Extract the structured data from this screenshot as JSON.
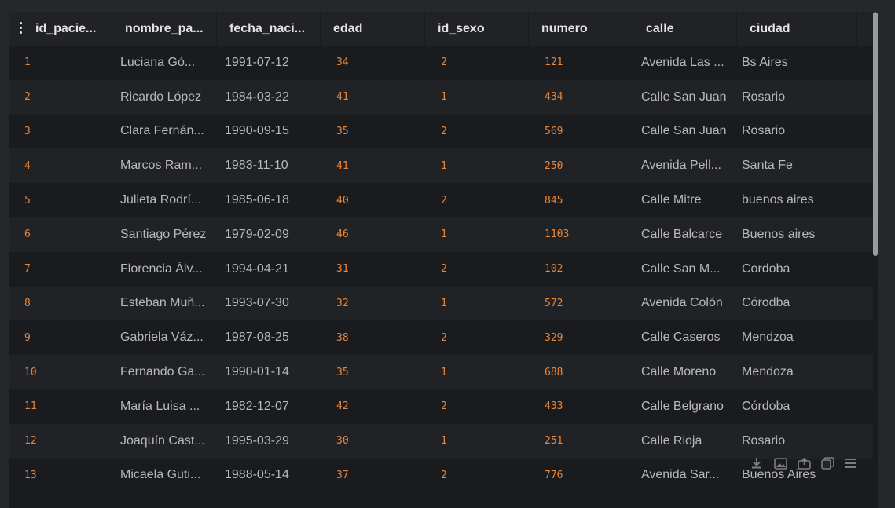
{
  "table": {
    "columns": [
      {
        "key": "id_paciente",
        "label": "id_pacie..."
      },
      {
        "key": "nombre_paciente",
        "label": "nombre_pa..."
      },
      {
        "key": "fecha_nacimiento",
        "label": "fecha_naci..."
      },
      {
        "key": "edad",
        "label": "edad"
      },
      {
        "key": "id_sexo",
        "label": "id_sexo"
      },
      {
        "key": "numero",
        "label": "numero"
      },
      {
        "key": "calle",
        "label": "calle"
      },
      {
        "key": "ciudad",
        "label": "ciudad"
      }
    ],
    "rows": [
      [
        "1",
        "Luciana Gó...",
        "1991-07-12",
        "34",
        "2",
        "121",
        "Avenida Las ...",
        "Bs Aires"
      ],
      [
        "2",
        "Ricardo López",
        "1984-03-22",
        "41",
        "1",
        "434",
        "Calle San Juan",
        "Rosario"
      ],
      [
        "3",
        "Clara Fernán...",
        "1990-09-15",
        "35",
        "2",
        "569",
        "Calle San Juan",
        "Rosario"
      ],
      [
        "4",
        "Marcos Ram...",
        "1983-11-10",
        "41",
        "1",
        "250",
        "Avenida Pell...",
        "Santa Fe"
      ],
      [
        "5",
        "Julieta Rodrí...",
        "1985-06-18",
        "40",
        "2",
        "845",
        "Calle Mitre",
        "buenos aires"
      ],
      [
        "6",
        "Santiago Pérez",
        "1979-02-09",
        "46",
        "1",
        "1103",
        "Calle Balcarce",
        "Buenos aires"
      ],
      [
        "7",
        "Florencia Álv...",
        "1994-04-21",
        "31",
        "2",
        "102",
        "Calle San M...",
        "Cordoba"
      ],
      [
        "8",
        "Esteban Muñ...",
        "1993-07-30",
        "32",
        "1",
        "572",
        "Avenida Colón",
        "Córodba"
      ],
      [
        "9",
        "Gabriela Váz...",
        "1987-08-25",
        "38",
        "2",
        "329",
        "Calle Caseros",
        "Mendzoa"
      ],
      [
        "10",
        "Fernando Ga...",
        "1990-01-14",
        "35",
        "1",
        "688",
        "Calle Moreno",
        "Mendoza"
      ],
      [
        "11",
        "María Luisa ...",
        "1982-12-07",
        "42",
        "2",
        "433",
        "Calle Belgrano",
        "Córdoba"
      ],
      [
        "12",
        "Joaquín Cast...",
        "1995-03-29",
        "30",
        "1",
        "251",
        "Calle Rioja",
        "Rosario"
      ],
      [
        "13",
        "Micaela Guti...",
        "1988-05-14",
        "37",
        "2",
        "776",
        "Avenida Sar...",
        "Buenos Aires"
      ]
    ]
  },
  "toolbar": {
    "icons": [
      "download-icon",
      "image-icon",
      "share-icon",
      "copy-icon",
      "menu-icon"
    ]
  },
  "colors": {
    "numeric_text": "#e8863a",
    "text": "#b8b9bd",
    "header_text": "#e3e3e6",
    "row_odd": "#1a1b1f",
    "row_even": "#212226"
  }
}
